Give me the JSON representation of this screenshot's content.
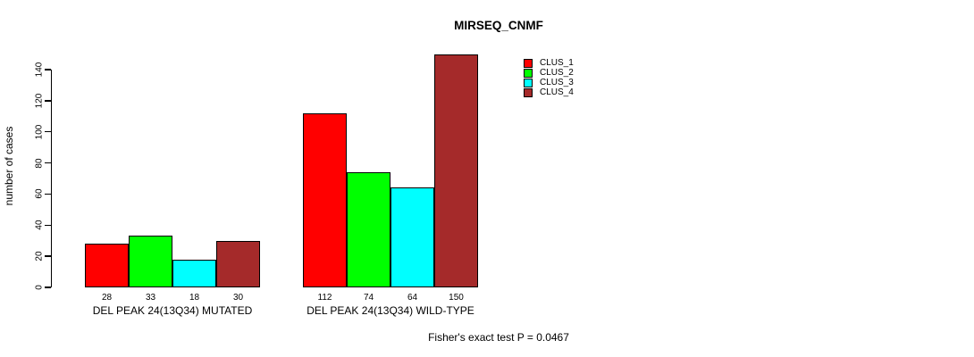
{
  "chart_data": {
    "type": "bar",
    "title": "MIRSEQ_CNMF",
    "ylabel": "number of cases",
    "xlabel": "",
    "ylim": [
      0,
      150
    ],
    "yticks": [
      0,
      20,
      40,
      60,
      80,
      100,
      120,
      140
    ],
    "grid": false,
    "legend_position": "top-right",
    "categories": [
      "DEL PEAK 24(13Q34) MUTATED",
      "DEL PEAK 24(13Q34) WILD-TYPE"
    ],
    "series": [
      {
        "name": "CLUS_1",
        "color": "#FF0000",
        "values": [
          28,
          112
        ]
      },
      {
        "name": "CLUS_2",
        "color": "#00FF00",
        "values": [
          33,
          74
        ]
      },
      {
        "name": "CLUS_3",
        "color": "#00FFFF",
        "values": [
          18,
          64
        ]
      },
      {
        "name": "CLUS_4",
        "color": "#A52A2A",
        "values": [
          30,
          150
        ]
      }
    ],
    "bar_value_labels": [
      [
        "28",
        "33",
        "18",
        "30"
      ],
      [
        "112",
        "74",
        "64",
        "150"
      ]
    ],
    "annotation": "Fisher's exact test P = 0.0467"
  },
  "colors": {
    "axis": "#000000",
    "text": "#000000",
    "background": "#FFFFFF"
  }
}
